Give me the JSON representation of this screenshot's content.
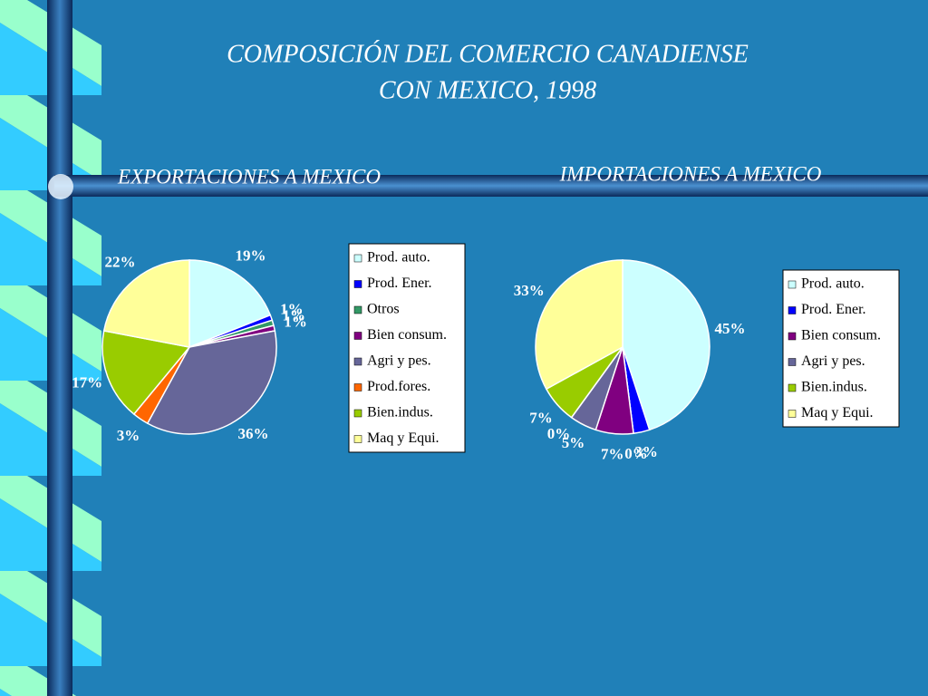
{
  "title": [
    "COMPOSICIÓN DEL COMERCIO CANADIENSE",
    "CON MEXICO, 1998"
  ],
  "chart_data": [
    {
      "type": "pie",
      "title": "EXPORTACIONES A MEXICO",
      "categories": [
        "Prod. auto.",
        "Prod. Ener.",
        "Otros",
        "Bien consum.",
        "Agri y pes.",
        "Prod.fores.",
        "Bien.indus.",
        "Maq y Equi."
      ],
      "values": [
        19,
        1,
        1,
        1,
        36,
        3,
        17,
        22
      ],
      "value_labels": [
        "19%",
        "1%",
        "1%",
        "1%",
        "36%",
        "3%",
        "17%",
        "22%"
      ],
      "colors": [
        "#ccffff",
        "#0000ff",
        "#339966",
        "#800080",
        "#666699",
        "#ff6600",
        "#99cc00",
        "#ffff99"
      ]
    },
    {
      "type": "pie",
      "title": "IMPORTACIONES A MEXICO",
      "categories": [
        "Prod. auto.",
        "Prod. Ener.",
        null,
        "Bien consum.",
        "Agri y pes.",
        null,
        "Bien.indus.",
        "Maq y Equi."
      ],
      "values": [
        45,
        3,
        0,
        7,
        5,
        0,
        7,
        33
      ],
      "value_labels": [
        "45%",
        "3%",
        "0%",
        "7%",
        "5%",
        "0%",
        "7%",
        "33%"
      ],
      "colors": [
        "#ccffff",
        "#0000ff",
        "#339966",
        "#800080",
        "#666699",
        "#ff6600",
        "#99cc00",
        "#ffff99"
      ]
    }
  ]
}
